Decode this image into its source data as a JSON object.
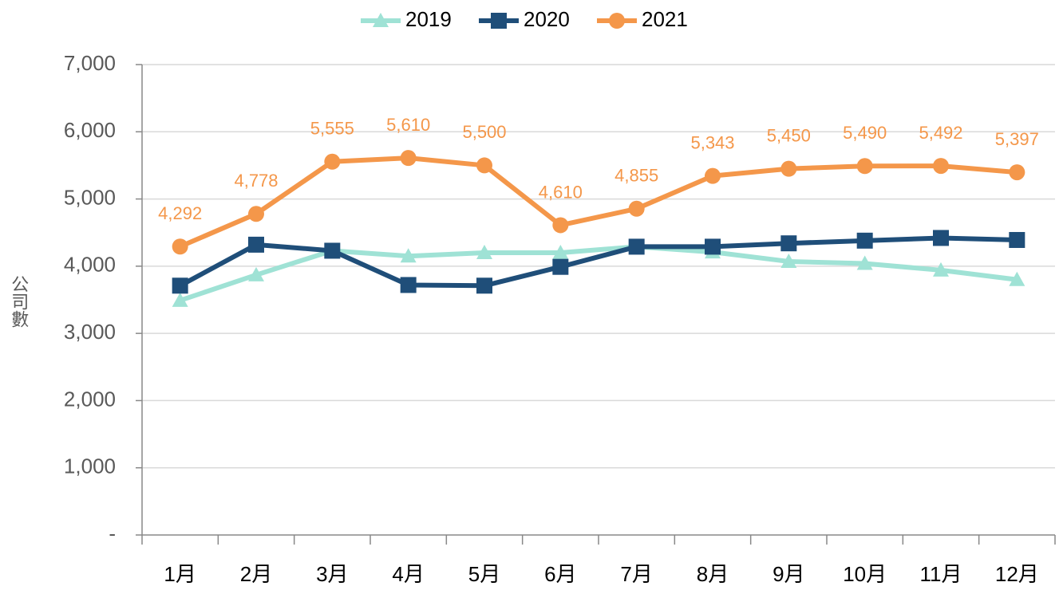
{
  "chart_data": {
    "type": "line",
    "y_label": "公司數",
    "categories": [
      "1月",
      "2月",
      "3月",
      "4月",
      "5月",
      "6月",
      "7月",
      "8月",
      "9月",
      "10月",
      "11月",
      "12月"
    ],
    "series": [
      {
        "name": "2019",
        "color": "#9fe2d5",
        "marker": "triangle",
        "values": [
          3490,
          3870,
          4230,
          4150,
          4200,
          4200,
          4290,
          4210,
          4070,
          4040,
          3940,
          3800
        ]
      },
      {
        "name": "2020",
        "color": "#1f4e79",
        "marker": "square",
        "values": [
          3710,
          4320,
          4230,
          3720,
          3710,
          3990,
          4290,
          4290,
          4340,
          4380,
          4420,
          4390
        ]
      },
      {
        "name": "2021",
        "color": "#f4974a",
        "marker": "circle",
        "values": [
          4292,
          4778,
          5555,
          5610,
          5500,
          4610,
          4855,
          5343,
          5450,
          5490,
          5492,
          5397
        ],
        "value_labels": [
          "4,292",
          "4,778",
          "5,555",
          "5,610",
          "5,500",
          "4,610",
          "4,855",
          "5,343",
          "5,450",
          "5,490",
          "5,492",
          "5,397"
        ]
      }
    ],
    "ylim": [
      0,
      7000
    ],
    "yticks": [
      {
        "value": 0,
        "label": "-"
      },
      {
        "value": 1000,
        "label": "1,000"
      },
      {
        "value": 2000,
        "label": "2,000"
      },
      {
        "value": 3000,
        "label": "3,000"
      },
      {
        "value": 4000,
        "label": "4,000"
      },
      {
        "value": 5000,
        "label": "5,000"
      },
      {
        "value": 6000,
        "label": "6,000"
      },
      {
        "value": 7000,
        "label": "7,000"
      }
    ],
    "grid": true,
    "legend": "top"
  }
}
